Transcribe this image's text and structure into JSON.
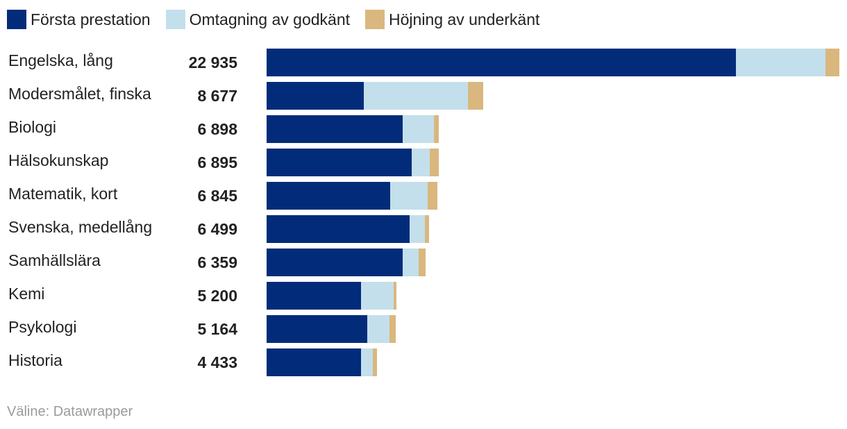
{
  "legend": [
    {
      "label": "Första prestation",
      "color": "#022c7a"
    },
    {
      "label": "Omtagning av godkänt",
      "color": "#c3dfeb"
    },
    {
      "label": "Höjning av underkänt",
      "color": "#d9b77e"
    }
  ],
  "footer": "Väline: Datawrapper",
  "chart_data": {
    "type": "bar",
    "orientation": "horizontal",
    "stacked": true,
    "categories": [
      "Engelska, lång",
      "Modersmålet, finska",
      "Biologi",
      "Hälsokunskap",
      "Matematik, kort",
      "Svenska, medellång",
      "Samhällslära",
      "Kemi",
      "Psykologi",
      "Historia"
    ],
    "totals_labels": [
      "22 935",
      "8 677",
      "6 898",
      "6 895",
      "6 845",
      "6 499",
      "6 359",
      "5 200",
      "5 164",
      "4 433"
    ],
    "totals": [
      22935,
      8677,
      6898,
      6895,
      6845,
      6499,
      6359,
      5200,
      5164,
      4433
    ],
    "series": [
      {
        "name": "Första prestation",
        "values": [
          18800,
          3900,
          5440,
          5820,
          4940,
          5720,
          5440,
          3780,
          4040,
          3780
        ]
      },
      {
        "name": "Omtagning av godkänt",
        "values": [
          3590,
          4160,
          1270,
          700,
          1520,
          610,
          660,
          1300,
          890,
          480
        ]
      },
      {
        "name": "Höjning av underkänt",
        "values": [
          545,
          617,
          188,
          375,
          385,
          169,
          259,
          120,
          234,
          173
        ]
      }
    ],
    "xlim": [
      0,
      22935
    ],
    "legend_position": "top-left",
    "grid": false
  }
}
